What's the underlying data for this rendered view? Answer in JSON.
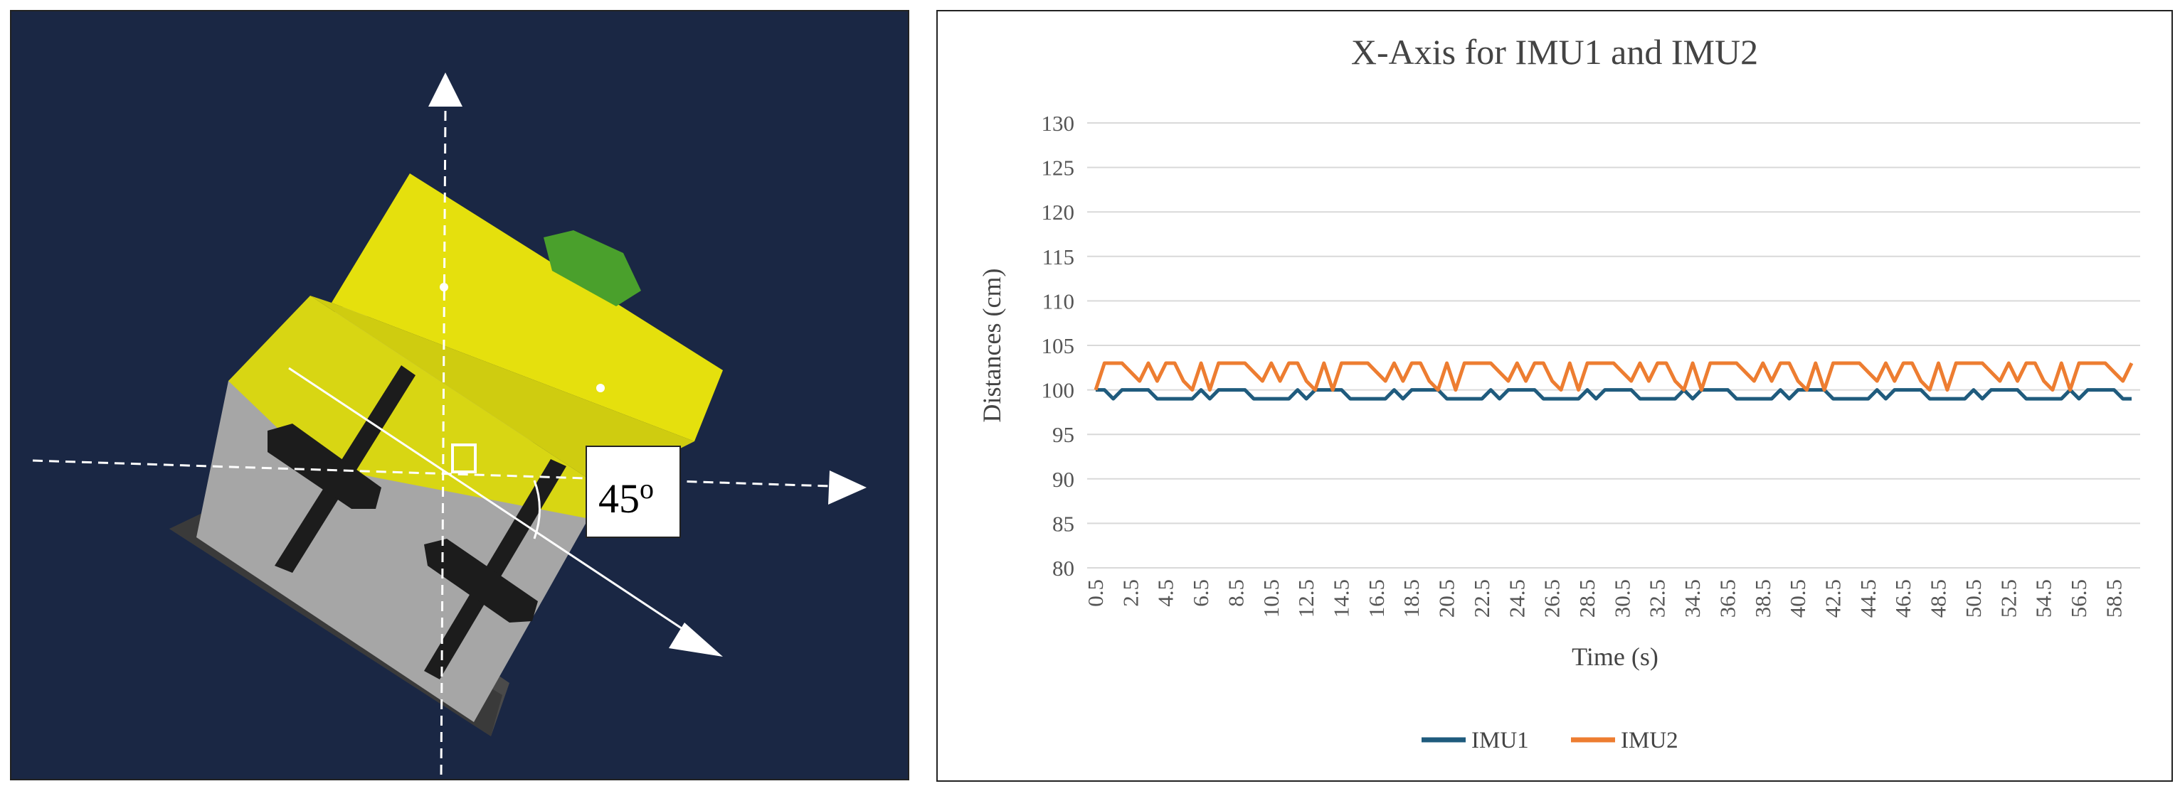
{
  "figure": {
    "angle_label": "45",
    "angle_superscript": "o"
  },
  "chart_data": {
    "type": "line",
    "title": "X-Axis for IMU1 and IMU2",
    "xlabel": "Time (s)",
    "ylabel": "Distances (cm)",
    "ylim": [
      80,
      130
    ],
    "yticks": [
      80,
      85,
      90,
      95,
      100,
      105,
      110,
      115,
      120,
      125,
      130
    ],
    "grid": true,
    "legend_position": "bottom",
    "x": [
      0.5,
      1.0,
      1.5,
      2.0,
      2.5,
      3.0,
      3.5,
      4.0,
      4.5,
      5.0,
      5.5,
      6.0,
      6.5,
      7.0,
      7.5,
      8.0,
      8.5,
      9.0,
      9.5,
      10.0,
      10.5,
      11.0,
      11.5,
      12.0,
      12.5,
      13.0,
      13.5,
      14.0,
      14.5,
      15.0,
      15.5,
      16.0,
      16.5,
      17.0,
      17.5,
      18.0,
      18.5,
      19.0,
      19.5,
      20.0,
      20.5,
      21.0,
      21.5,
      22.0,
      22.5,
      23.0,
      23.5,
      24.0,
      24.5,
      25.0,
      25.5,
      26.0,
      26.5,
      27.0,
      27.5,
      28.0,
      28.5,
      29.0,
      29.5,
      30.0,
      30.5,
      31.0,
      31.5,
      32.0,
      32.5,
      33.0,
      33.5,
      34.0,
      34.5,
      35.0,
      35.5,
      36.0,
      36.5,
      37.0,
      37.5,
      38.0,
      38.5,
      39.0,
      39.5,
      40.0,
      40.5,
      41.0,
      41.5,
      42.0,
      42.5,
      43.0,
      43.5,
      44.0,
      44.5,
      45.0,
      45.5,
      46.0,
      46.5,
      47.0,
      47.5,
      48.0,
      48.5,
      49.0,
      49.5,
      50.0,
      50.5,
      51.0,
      51.5,
      52.0,
      52.5,
      53.0,
      53.5,
      54.0,
      54.5,
      55.0,
      55.5,
      56.0,
      56.5,
      57.0,
      57.5,
      58.0,
      58.5,
      59.0,
      59.5
    ],
    "x_tick_labels": [
      "0.5",
      "2.5",
      "4.5",
      "6.5",
      "8.5",
      "10.5",
      "12.5",
      "14.5",
      "16.5",
      "18.5",
      "20.5",
      "22.5",
      "24.5",
      "26.5",
      "28.5",
      "30.5",
      "32.5",
      "34.5",
      "36.5",
      "38.5",
      "40.5",
      "42.5",
      "44.5",
      "46.5",
      "48.5",
      "50.5",
      "52.5",
      "54.5",
      "56.5",
      "58.5"
    ],
    "series": [
      {
        "name": "IMU1",
        "color": "#1f5b7d",
        "values": [
          100,
          100,
          99,
          100,
          100,
          100,
          100,
          99,
          99,
          99,
          99,
          99,
          100,
          99,
          100,
          100,
          100,
          100,
          99,
          99,
          99,
          99,
          99,
          100,
          99,
          100,
          100,
          100,
          100,
          99,
          99,
          99,
          99,
          99,
          100,
          99,
          100,
          100,
          100,
          100,
          99,
          99,
          99,
          99,
          99,
          100,
          99,
          100,
          100,
          100,
          100,
          99,
          99,
          99,
          99,
          99,
          100,
          99,
          100,
          100,
          100,
          100,
          99,
          99,
          99,
          99,
          99,
          100,
          99,
          100,
          100,
          100,
          100,
          99,
          99,
          99,
          99,
          99,
          100,
          99,
          100,
          100,
          100,
          100,
          99,
          99,
          99,
          99,
          99,
          100,
          99,
          100,
          100,
          100,
          100,
          99,
          99,
          99,
          99,
          99,
          100,
          99,
          100,
          100,
          100,
          100,
          99,
          99,
          99,
          99,
          99,
          100,
          99,
          100,
          100,
          100,
          100,
          99,
          99
        ]
      },
      {
        "name": "IMU2",
        "color": "#ed7d31",
        "values": [
          100,
          103,
          103,
          103,
          102,
          101,
          103,
          101,
          103,
          103,
          101,
          100,
          103,
          100,
          103,
          103,
          103,
          103,
          102,
          101,
          103,
          101,
          103,
          103,
          101,
          100,
          103,
          100,
          103,
          103,
          103,
          103,
          102,
          101,
          103,
          101,
          103,
          103,
          101,
          100,
          103,
          100,
          103,
          103,
          103,
          103,
          102,
          101,
          103,
          101,
          103,
          103,
          101,
          100,
          103,
          100,
          103,
          103,
          103,
          103,
          102,
          101,
          103,
          101,
          103,
          103,
          101,
          100,
          103,
          100,
          103,
          103,
          103,
          103,
          102,
          101,
          103,
          101,
          103,
          103,
          101,
          100,
          103,
          100,
          103,
          103,
          103,
          103,
          102,
          101,
          103,
          101,
          103,
          103,
          101,
          100,
          103,
          100,
          103,
          103,
          103,
          103,
          102,
          101,
          103,
          101,
          103,
          103,
          101,
          100,
          103,
          100,
          103,
          103,
          103,
          103,
          102,
          101,
          103
        ]
      }
    ]
  }
}
